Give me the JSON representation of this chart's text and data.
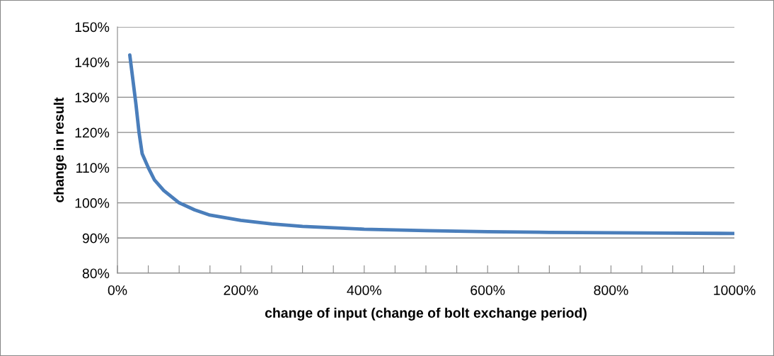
{
  "chart_data": {
    "type": "line",
    "xlabel": "change of input (change of bolt exchange period)",
    "ylabel": "change in result",
    "x": [
      20,
      25,
      30,
      35,
      40,
      50,
      60,
      75,
      100,
      125,
      150,
      200,
      250,
      300,
      400,
      500,
      600,
      700,
      800,
      900,
      1000
    ],
    "series": [
      {
        "color": "#4a7ebb",
        "values": [
          142,
          135,
          128,
          120,
          114,
          110,
          106.5,
          103.5,
          100,
          98,
          96.5,
          95,
          94,
          93.3,
          92.5,
          92.1,
          91.8,
          91.6,
          91.5,
          91.4,
          91.3
        ]
      }
    ],
    "xlim": [
      0,
      1000
    ],
    "xticks": [
      {
        "value": 0,
        "label": "0%"
      },
      {
        "value": 50,
        "label": null
      },
      {
        "value": 100,
        "label": null
      },
      {
        "value": 150,
        "label": null
      },
      {
        "value": 200,
        "label": "200%"
      },
      {
        "value": 250,
        "label": null
      },
      {
        "value": 300,
        "label": null
      },
      {
        "value": 350,
        "label": null
      },
      {
        "value": 400,
        "label": "400%"
      },
      {
        "value": 450,
        "label": null
      },
      {
        "value": 500,
        "label": null
      },
      {
        "value": 550,
        "label": null
      },
      {
        "value": 600,
        "label": "600%"
      },
      {
        "value": 650,
        "label": null
      },
      {
        "value": 700,
        "label": null
      },
      {
        "value": 750,
        "label": null
      },
      {
        "value": 800,
        "label": "800%"
      },
      {
        "value": 850,
        "label": null
      },
      {
        "value": 900,
        "label": null
      },
      {
        "value": 950,
        "label": null
      },
      {
        "value": 1000,
        "label": "1000%"
      }
    ],
    "ylim": [
      80,
      150
    ],
    "yticks": [
      {
        "value": 80,
        "label": "80%"
      },
      {
        "value": 90,
        "label": "90%"
      },
      {
        "value": 100,
        "label": "100%"
      },
      {
        "value": 110,
        "label": "110%"
      },
      {
        "value": 120,
        "label": "120%"
      },
      {
        "value": 130,
        "label": "130%"
      },
      {
        "value": 140,
        "label": "140%"
      },
      {
        "value": 150,
        "label": "150%"
      }
    ],
    "grid": "y",
    "legend": false,
    "marker": "none",
    "line_style": "solid"
  }
}
